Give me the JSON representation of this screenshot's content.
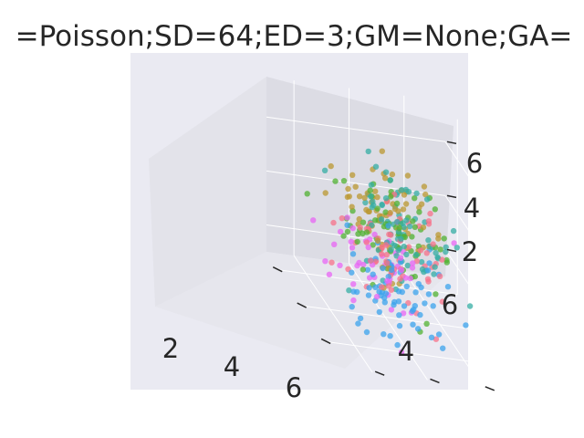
{
  "chart_data": {
    "type": "scatter",
    "projection": "3d",
    "title": "=Poisson;SD=64;ED=3;GM=None;GA=",
    "xlabel": "",
    "ylabel": "",
    "zlabel": "",
    "x_ticks": [
      "2",
      "4",
      "6"
    ],
    "y_ticks": [
      "4",
      "6"
    ],
    "z_ticks": [
      "2",
      "4",
      "6"
    ],
    "xlim": [
      1,
      7.5
    ],
    "ylim": [
      1,
      7.5
    ],
    "zlim": [
      1,
      7.5
    ],
    "grid": true,
    "legend": "none",
    "series_colors": [
      "#f77189",
      "#bb9832",
      "#50b131",
      "#36ada4",
      "#3ba3ec",
      "#e866f4"
    ],
    "series_sizes": [
      60,
      70,
      70,
      80,
      70,
      50
    ],
    "seed": 64
  },
  "colors": {
    "pane": "#e5e5ec",
    "figure_bg": "#eaeaf2",
    "grid": "#ffffff",
    "text": "#262626"
  }
}
